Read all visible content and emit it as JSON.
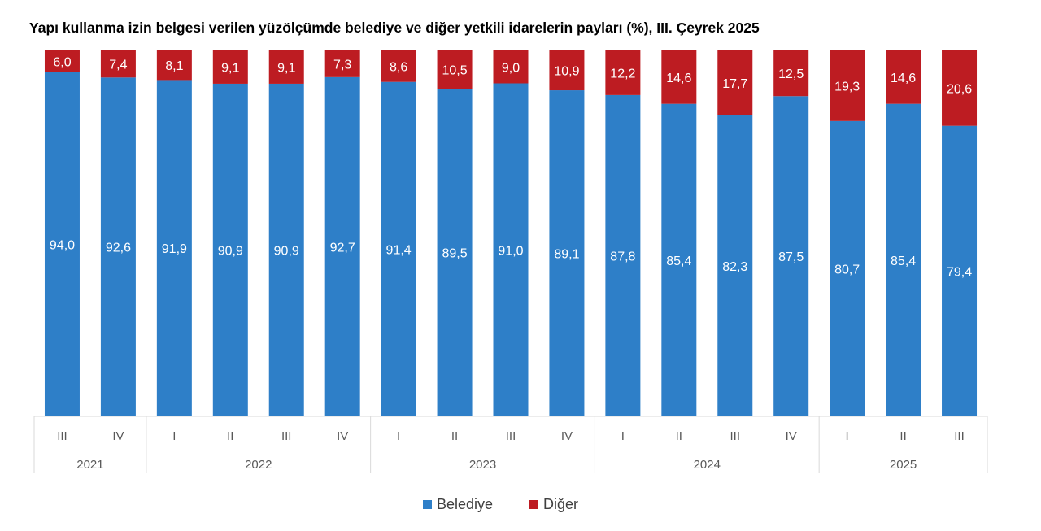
{
  "title": "Yapı kullanma izin belgesi verilen yüzölçümde belediye ve diğer yetkili idarelerin payları (%), III. Çeyrek 2025",
  "colors": {
    "belediye": "#2E7FC8",
    "diger": "#BD1C22",
    "axis": "#D9D9D9",
    "tick_text": "#595959"
  },
  "chart_data": {
    "type": "bar",
    "stacked": true,
    "categories": [
      "III",
      "IV",
      "I",
      "II",
      "III",
      "IV",
      "I",
      "II",
      "III",
      "IV",
      "I",
      "II",
      "III",
      "IV",
      "I",
      "II",
      "III"
    ],
    "groups": [
      {
        "label": "2021",
        "count": 2
      },
      {
        "label": "2022",
        "count": 4
      },
      {
        "label": "2023",
        "count": 4
      },
      {
        "label": "2024",
        "count": 4
      },
      {
        "label": "2025",
        "count": 3
      }
    ],
    "series": [
      {
        "name": "Belediye",
        "labels": [
          "94,0",
          "92,6",
          "91,9",
          "90,9",
          "90,9",
          "92,7",
          "91,4",
          "89,5",
          "91,0",
          "89,1",
          "87,8",
          "85,4",
          "82,3",
          "87,5",
          "80,7",
          "85,4",
          "79,4"
        ]
      },
      {
        "name": "Diğer",
        "labels": [
          "6,0",
          "7,4",
          "8,1",
          "9,1",
          "9,1",
          "7,3",
          "8,6",
          "10,5",
          "9,0",
          "10,9",
          "12,2",
          "14,6",
          "17,7",
          "12,5",
          "19,3",
          "14,6",
          "20,6"
        ]
      }
    ],
    "ylim": [
      0,
      100
    ],
    "grid": false,
    "legend_position": "bottom"
  }
}
